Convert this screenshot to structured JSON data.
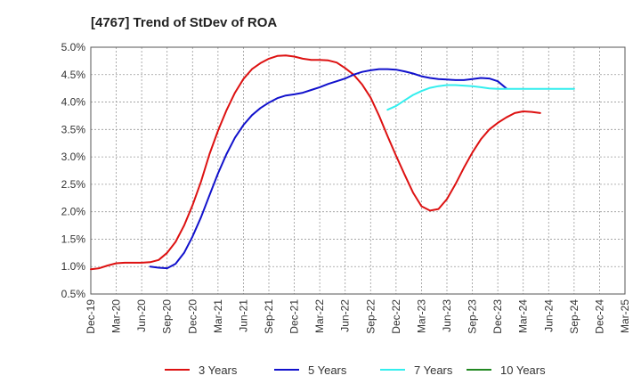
{
  "chart_data": {
    "type": "line",
    "title": "[4767]  Trend of StDev of ROA",
    "xlabel": "",
    "ylabel": "",
    "x_ticks": [
      "Dec-19",
      "Mar-20",
      "Jun-20",
      "Sep-20",
      "Dec-20",
      "Mar-21",
      "Jun-21",
      "Sep-21",
      "Dec-21",
      "Mar-22",
      "Jun-22",
      "Sep-22",
      "Dec-22",
      "Mar-23",
      "Jun-23",
      "Sep-23",
      "Dec-23",
      "Mar-24",
      "Jun-24",
      "Sep-24",
      "Dec-24",
      "Mar-25"
    ],
    "y_ticks": [
      "0.5%",
      "1.0%",
      "1.5%",
      "2.0%",
      "2.5%",
      "3.0%",
      "3.5%",
      "4.0%",
      "4.5%",
      "5.0%"
    ],
    "ylim": [
      0.5,
      5.0
    ],
    "grid": true,
    "legend_position": "bottom",
    "series": [
      {
        "name": "3 Years",
        "color": "#dd1111",
        "start_index": 0,
        "values": [
          0.95,
          0.97,
          1.02,
          1.06,
          1.07,
          1.07,
          1.07,
          1.08,
          1.12,
          1.25,
          1.45,
          1.75,
          2.12,
          2.55,
          3.05,
          3.48,
          3.85,
          4.17,
          4.42,
          4.6,
          4.71,
          4.79,
          4.84,
          4.85,
          4.83,
          4.79,
          4.77,
          4.77,
          4.76,
          4.72,
          4.62,
          4.5,
          4.32,
          4.08,
          3.75,
          3.38,
          3.02,
          2.68,
          2.35,
          2.1,
          2.02,
          2.05,
          2.23,
          2.5,
          2.8,
          3.08,
          3.32,
          3.5,
          3.62,
          3.72,
          3.8,
          3.83,
          3.82,
          3.8
        ]
      },
      {
        "name": "5 Years",
        "color": "#1111cc",
        "start_index": 7,
        "values": [
          1.0,
          0.98,
          0.97,
          1.05,
          1.25,
          1.55,
          1.9,
          2.3,
          2.7,
          3.05,
          3.35,
          3.58,
          3.76,
          3.89,
          3.99,
          4.07,
          4.12,
          4.14,
          4.17,
          4.22,
          4.27,
          4.33,
          4.38,
          4.43,
          4.5,
          4.55,
          4.58,
          4.6,
          4.6,
          4.59,
          4.56,
          4.52,
          4.47,
          4.44,
          4.42,
          4.41,
          4.4,
          4.4,
          4.42,
          4.44,
          4.43,
          4.38,
          4.25
        ]
      },
      {
        "name": "7 Years",
        "color": "#33eeee",
        "start_index": 35,
        "values": [
          3.86,
          3.93,
          4.03,
          4.13,
          4.2,
          4.26,
          4.29,
          4.31,
          4.31,
          4.3,
          4.29,
          4.27,
          4.25,
          4.24,
          4.24,
          4.24,
          4.24,
          4.24,
          4.24,
          4.24,
          4.24,
          4.24,
          4.24
        ]
      },
      {
        "name": "10 Years",
        "color": "#228822",
        "start_index": 0,
        "values": []
      }
    ]
  }
}
